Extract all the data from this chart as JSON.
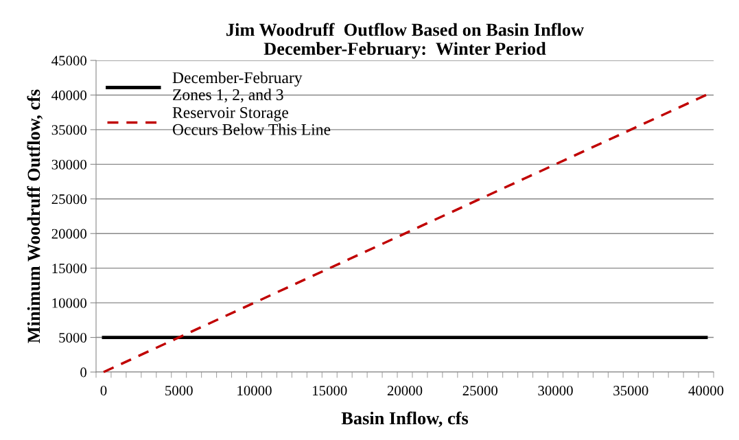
{
  "chart_data": {
    "type": "line",
    "title": "Jim Woodruff  Outflow Based on Basin Inflow\nDecember-February:  Winter Period",
    "xlabel": "Basin Inflow, cfs",
    "ylabel": "Minimum Woodruff Outflow, cfs",
    "x": [
      0,
      40000
    ],
    "series": [
      {
        "name": "December-February\nZones 1, 2, and 3",
        "color": "#000000",
        "line_style": "solid",
        "values": [
          5000,
          5000
        ]
      },
      {
        "name": "Reservoir Storage\nOccurs Below This Line",
        "color": "#c00000",
        "line_style": "dashed",
        "values": [
          0,
          40000
        ]
      }
    ],
    "xlim": [
      -500,
      40500
    ],
    "xticks": [
      0,
      5000,
      10000,
      15000,
      20000,
      25000,
      30000,
      35000,
      40000,
      {
        "value": -500,
        "label": null
      },
      {
        "value": 500,
        "label": null
      },
      {
        "value": 1500,
        "label": null
      },
      {
        "value": 2500,
        "label": null
      },
      {
        "value": 3500,
        "label": null
      },
      {
        "value": 4500,
        "label": null
      },
      {
        "value": 5500,
        "label": null
      },
      {
        "value": 6500,
        "label": null
      },
      {
        "value": 7500,
        "label": null
      },
      {
        "value": 8500,
        "label": null
      },
      {
        "value": 9500,
        "label": null
      },
      {
        "value": 10500,
        "label": null
      },
      {
        "value": 11500,
        "label": null
      },
      {
        "value": 12500,
        "label": null
      },
      {
        "value": 13500,
        "label": null
      },
      {
        "value": 14500,
        "label": null
      },
      {
        "value": 15500,
        "label": null
      },
      {
        "value": 16500,
        "label": null
      },
      {
        "value": 17500,
        "label": null
      },
      {
        "value": 18500,
        "label": null
      },
      {
        "value": 19500,
        "label": null
      },
      {
        "value": 20500,
        "label": null
      },
      {
        "value": 21500,
        "label": null
      },
      {
        "value": 22500,
        "label": null
      },
      {
        "value": 23500,
        "label": null
      },
      {
        "value": 24500,
        "label": null
      },
      {
        "value": 25500,
        "label": null
      },
      {
        "value": 26500,
        "label": null
      },
      {
        "value": 27500,
        "label": null
      },
      {
        "value": 28500,
        "label": null
      },
      {
        "value": 29500,
        "label": null
      },
      {
        "value": 30500,
        "label": null
      },
      {
        "value": 31500,
        "label": null
      },
      {
        "value": 32500,
        "label": null
      },
      {
        "value": 33500,
        "label": null
      },
      {
        "value": 34500,
        "label": null
      },
      {
        "value": 35500,
        "label": null
      },
      {
        "value": 36500,
        "label": null
      },
      {
        "value": 37500,
        "label": null
      },
      {
        "value": 38500,
        "label": null
      },
      {
        "value": 39500,
        "label": null
      },
      {
        "value": 40500,
        "label": null
      }
    ],
    "ylim": [
      0,
      45000
    ],
    "yticks": [
      0,
      5000,
      10000,
      15000,
      20000,
      25000,
      30000,
      35000,
      40000,
      45000
    ],
    "grid": "y",
    "legend": "top left",
    "marker": "none"
  }
}
